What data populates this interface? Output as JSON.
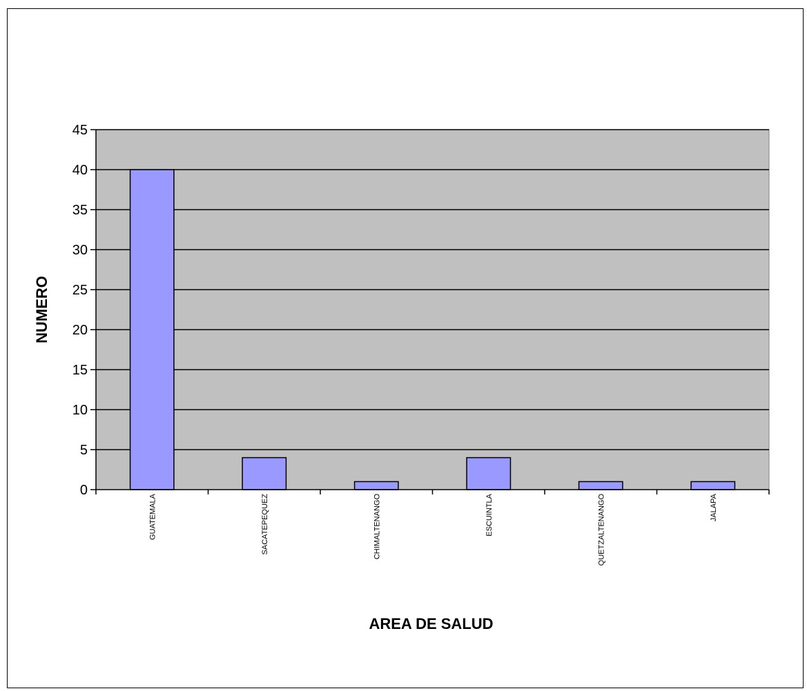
{
  "chart_data": {
    "type": "bar",
    "categories": [
      "GUATEMALA",
      "SACATEPEQUEZ",
      "CHIMALTENANGO",
      "ESCUINTLA",
      "QUETZALTENANGO",
      "JALAPA"
    ],
    "values": [
      40,
      4,
      1,
      4,
      1,
      1
    ],
    "title": "",
    "xlabel": "AREA DE SALUD",
    "ylabel": "NUMERO",
    "ylim": [
      0,
      45
    ],
    "yticks": [
      0,
      5,
      10,
      15,
      20,
      25,
      30,
      35,
      40,
      45
    ],
    "grid": true,
    "legend": "none",
    "colors": {
      "plot_background": "#c0c0c0",
      "bar_fill": "#9999ff",
      "bar_stroke": "#000000",
      "gridline": "#000000"
    }
  }
}
